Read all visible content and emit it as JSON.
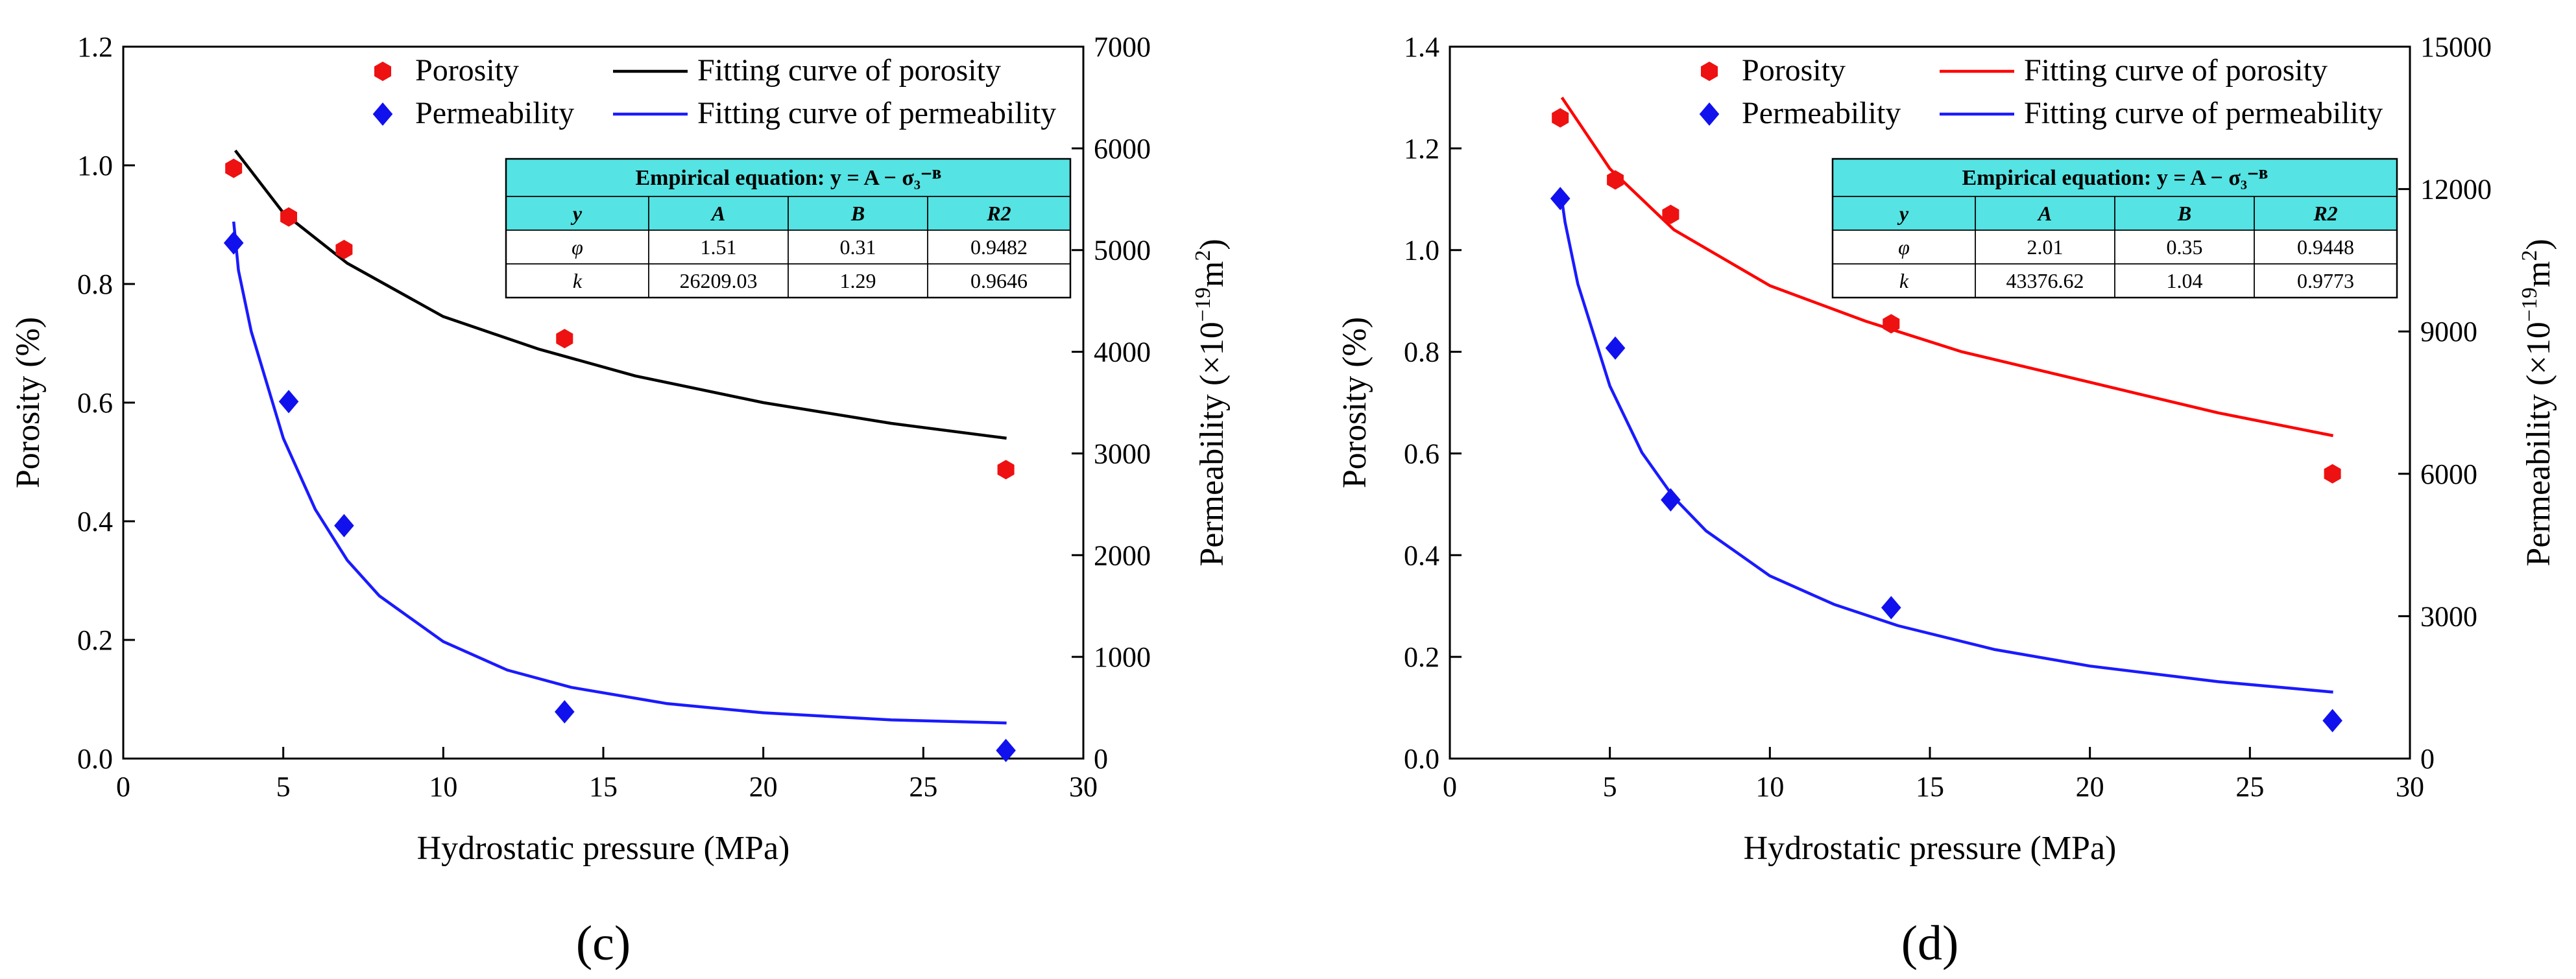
{
  "chart_data": [
    {
      "type": "scatter",
      "panel_label": "c",
      "xlabel": "Hydrostatic pressure (MPa)",
      "ylabel": "Porosity (%)",
      "y2label": "Permeability (×10",
      "y2label_exp": "−19",
      "y2label_unit": "m",
      "y2label_unit_exp": "2",
      "y2label_close": ")",
      "xlim": [
        0,
        30
      ],
      "ylim": [
        0,
        1.2
      ],
      "y2lim": [
        0,
        7000
      ],
      "xticks": [
        0,
        5,
        10,
        15,
        20,
        25,
        30
      ],
      "yticks": [
        0.0,
        0.2,
        0.4,
        0.6,
        0.8,
        1.0,
        1.2
      ],
      "ytick_labels": [
        "0.0",
        "0.2",
        "0.4",
        "0.6",
        "0.8",
        "1.0",
        "1.2"
      ],
      "y2ticks": [
        0,
        1000,
        2000,
        3000,
        4000,
        5000,
        6000,
        7000
      ],
      "fit_color": "#000000",
      "legend": {
        "porosity": "Porosity",
        "permeability": "Permeability",
        "fit_porosity": "Fitting curve of porosity",
        "fit_permeability": "Fitting curve of permeability"
      },
      "porosity_points": {
        "x": [
          3.45,
          5.17,
          6.9,
          13.79,
          27.58
        ],
        "y": [
          0.995,
          0.913,
          0.858,
          0.708,
          0.487
        ]
      },
      "permeability_points": {
        "x": [
          3.45,
          5.17,
          6.9,
          13.79,
          27.58
        ],
        "y": [
          5070,
          3510,
          2290,
          460,
          80
        ]
      },
      "porosity_fit": {
        "x": [
          3.5,
          5,
          7,
          10,
          13,
          16,
          20,
          24,
          27.6
        ],
        "y": [
          1.025,
          0.92,
          0.835,
          0.745,
          0.69,
          0.645,
          0.6,
          0.565,
          0.54
        ]
      },
      "permeability_fit": {
        "x": [
          3.45,
          3.6,
          4,
          5,
          6,
          7,
          8,
          10,
          12,
          14,
          17,
          20,
          24,
          27.6
        ],
        "y": [
          5280,
          4800,
          4200,
          3150,
          2450,
          1950,
          1600,
          1150,
          870,
          700,
          540,
          450,
          380,
          350
        ]
      },
      "table": {
        "title": "Empirical equation: y = A − σ₃⁻ᴮ",
        "headers": [
          "y",
          "A",
          "B",
          "R2"
        ],
        "rows": [
          [
            "φ",
            "1.51",
            "0.31",
            "0.9482"
          ],
          [
            "k",
            "26209.03",
            "1.29",
            "0.9646"
          ]
        ]
      }
    },
    {
      "type": "scatter",
      "panel_label": "d",
      "xlabel": "Hydrostatic pressure (MPa)",
      "ylabel": "Porosity (%)",
      "y2label": "Permeability (×10",
      "y2label_exp": "−19",
      "y2label_unit": "m",
      "y2label_unit_exp": "2",
      "y2label_close": ")",
      "xlim": [
        0,
        30
      ],
      "ylim": [
        0,
        1.4
      ],
      "y2lim": [
        0,
        15000
      ],
      "xticks": [
        0,
        5,
        10,
        15,
        20,
        25,
        30
      ],
      "yticks": [
        0.0,
        0.2,
        0.4,
        0.6,
        0.8,
        1.0,
        1.2,
        1.4
      ],
      "ytick_labels": [
        "0.0",
        "0.2",
        "0.4",
        "0.6",
        "0.8",
        "1.0",
        "1.2",
        "1.4"
      ],
      "y2ticks": [
        0,
        3000,
        6000,
        9000,
        12000,
        15000
      ],
      "fit_color": "#ff0000",
      "legend": {
        "porosity": "Porosity",
        "permeability": "Permeability",
        "fit_porosity": "Fitting curve of porosity",
        "fit_permeability": "Fitting curve of permeability"
      },
      "porosity_points": {
        "x": [
          3.45,
          5.17,
          6.9,
          13.79,
          27.58
        ],
        "y": [
          1.26,
          1.138,
          1.07,
          0.855,
          0.56
        ]
      },
      "permeability_points": {
        "x": [
          3.45,
          5.17,
          6.9,
          13.79,
          27.58
        ],
        "y": [
          11800,
          8650,
          5450,
          3180,
          800
        ]
      },
      "porosity_fit": {
        "x": [
          3.5,
          5,
          7,
          10,
          13,
          16,
          20,
          24,
          27.6
        ],
        "y": [
          1.3,
          1.16,
          1.04,
          0.93,
          0.86,
          0.8,
          0.74,
          0.68,
          0.635
        ]
      },
      "permeability_fit": {
        "x": [
          3.45,
          3.6,
          4,
          5,
          6,
          7,
          8,
          10,
          12,
          14,
          17,
          20,
          24,
          27.6
        ],
        "y": [
          12000,
          11300,
          10000,
          7850,
          6450,
          5500,
          4800,
          3850,
          3250,
          2800,
          2300,
          1950,
          1620,
          1400
        ]
      },
      "table": {
        "title": "Empirical equation: y = A − σ₃⁻ᴮ",
        "headers": [
          "y",
          "A",
          "B",
          "R2"
        ],
        "rows": [
          [
            "φ",
            "2.01",
            "0.35",
            "0.9448"
          ],
          [
            "k",
            "43376.62",
            "1.04",
            "0.9773"
          ]
        ]
      }
    }
  ]
}
